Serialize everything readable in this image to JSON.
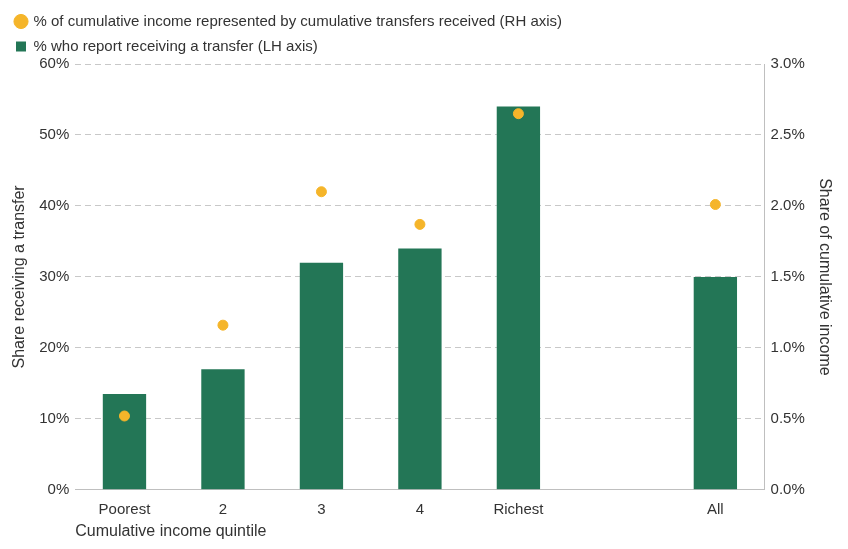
{
  "chart_data": {
    "type": "bar",
    "categories": [
      "Poorest",
      "2",
      "3",
      "4",
      "Richest",
      null,
      "All"
    ],
    "x_label": "Cumulative income quintile",
    "y_label": "Share receiving a transfer",
    "y2_label": "Share of cumulative income",
    "series": [
      {
        "name": "% who report receiving a transfer (LH axis)",
        "type": "bar",
        "color": "#237656",
        "values": [
          13.5,
          17,
          32,
          34,
          54,
          null,
          30
        ]
      },
      {
        "name": "% of cumulative income represented by cumulative transfers received (RH axis)",
        "type": "scatter",
        "marker": "circle",
        "color": "#f5b52a",
        "axis": "y2",
        "values": [
          0.52,
          1.16,
          2.1,
          1.87,
          2.65,
          null,
          2.01
        ]
      }
    ],
    "ylim": [
      0,
      60
    ],
    "yticks": [
      {
        "value": 0,
        "label": "0%"
      },
      {
        "value": 10,
        "label": "10%"
      },
      {
        "value": 20,
        "label": "20%"
      },
      {
        "value": 30,
        "label": "30%"
      },
      {
        "value": 40,
        "label": "40%"
      },
      {
        "value": 50,
        "label": "50%"
      },
      {
        "value": 60,
        "label": "60%"
      }
    ],
    "y2lim": [
      0,
      3
    ],
    "y2ticks": [
      {
        "value": 0,
        "label": "0.0%"
      },
      {
        "value": 0.5,
        "label": "0.5%"
      },
      {
        "value": 1,
        "label": "1.0%"
      },
      {
        "value": 1.5,
        "label": "1.5%"
      },
      {
        "value": 2,
        "label": "2.0%"
      },
      {
        "value": 2.5,
        "label": "2.5%"
      },
      {
        "value": 3,
        "label": "3.0%"
      }
    ],
    "grid": true,
    "legend": "top-left"
  }
}
